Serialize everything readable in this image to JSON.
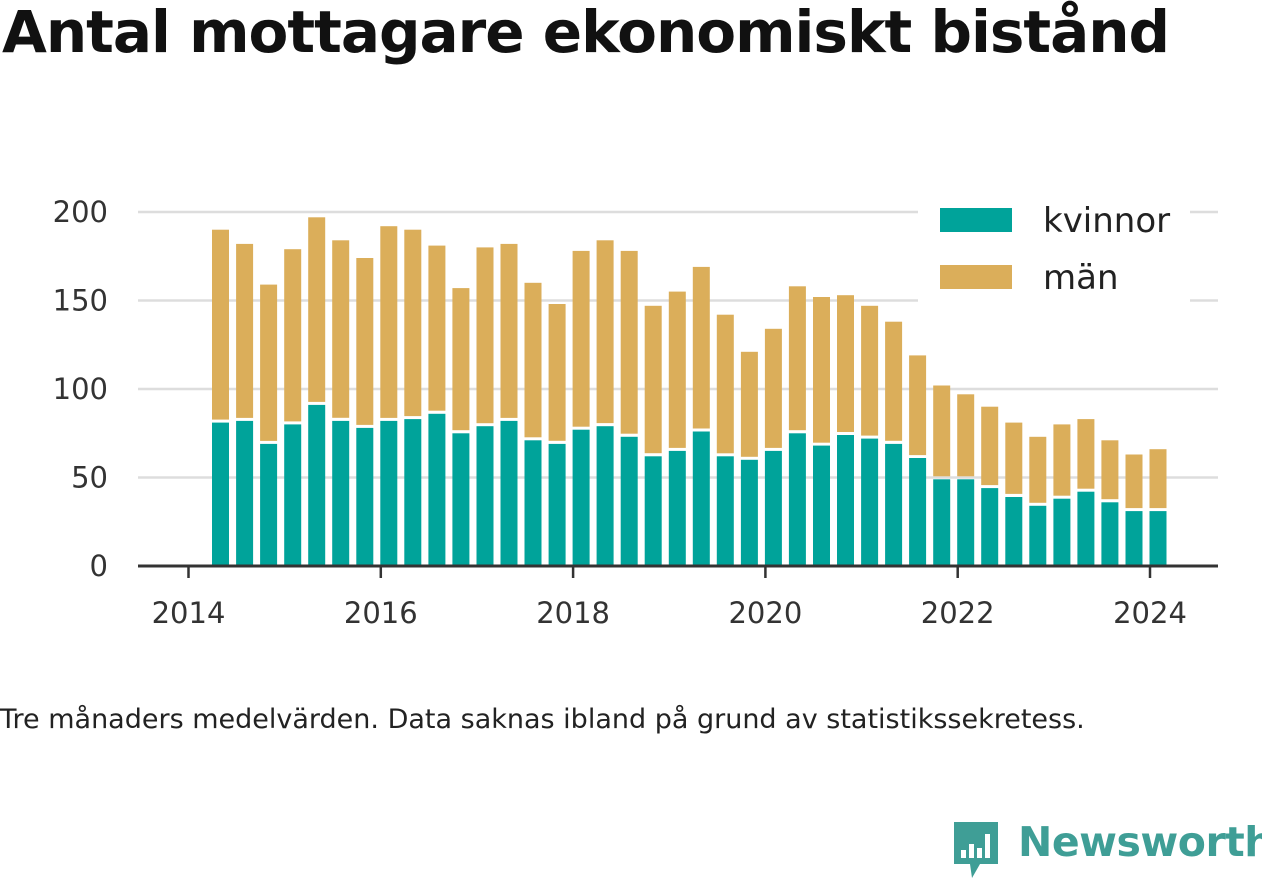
{
  "title": "Antal mottagare ekonomiskt bistånd",
  "note": "Tre månaders medelvärden. Data saknas ibland på grund av statistikssekretess.",
  "brand": {
    "name": "Newsworthy",
    "icon": "newsworthy-logo-icon",
    "color": "#3f9e96"
  },
  "chart_data": {
    "type": "bar",
    "stacked": true,
    "title": "Antal mottagare ekonomiskt bistånd",
    "xlabel": "",
    "ylabel": "",
    "ylim": [
      0,
      200
    ],
    "yticks": [
      0,
      50,
      100,
      150,
      200
    ],
    "xticks": [
      "2014",
      "2016",
      "2018",
      "2020",
      "2022",
      "2024"
    ],
    "xlim": [
      "2014-01-01",
      "2024-06-01"
    ],
    "grid": true,
    "legend": "top-right",
    "x": [
      "2014-05",
      "2014-08",
      "2014-11",
      "2015-02",
      "2015-05",
      "2015-08",
      "2015-11",
      "2016-02",
      "2016-05",
      "2016-08",
      "2016-11",
      "2017-02",
      "2017-05",
      "2017-08",
      "2017-11",
      "2018-02",
      "2018-05",
      "2018-08",
      "2018-11",
      "2019-02",
      "2019-05",
      "2019-08",
      "2019-11",
      "2020-02",
      "2020-05",
      "2020-08",
      "2020-11",
      "2021-02",
      "2021-05",
      "2021-08",
      "2021-11",
      "2022-02",
      "2022-05",
      "2022-08",
      "2022-11",
      "2023-02",
      "2023-05",
      "2023-08",
      "2023-11",
      "2024-02"
    ],
    "series": [
      {
        "name": "kvinnor",
        "color": "#00a39a",
        "values": [
          81,
          82,
          69,
          80,
          91,
          82,
          78,
          82,
          83,
          86,
          75,
          79,
          82,
          71,
          69,
          77,
          79,
          73,
          62,
          65,
          76,
          62,
          60,
          65,
          75,
          68,
          74,
          72,
          69,
          61,
          49,
          49,
          44,
          39,
          34,
          38,
          42,
          36,
          31,
          31
        ]
      },
      {
        "name": "män",
        "color": "#dbae5a",
        "values": [
          109,
          100,
          90,
          99,
          106,
          102,
          96,
          110,
          107,
          95,
          82,
          101,
          100,
          89,
          79,
          101,
          105,
          105,
          85,
          90,
          93,
          80,
          61,
          69,
          83,
          84,
          79,
          75,
          69,
          58,
          53,
          48,
          46,
          42,
          39,
          42,
          41,
          35,
          32,
          35
        ]
      }
    ]
  }
}
